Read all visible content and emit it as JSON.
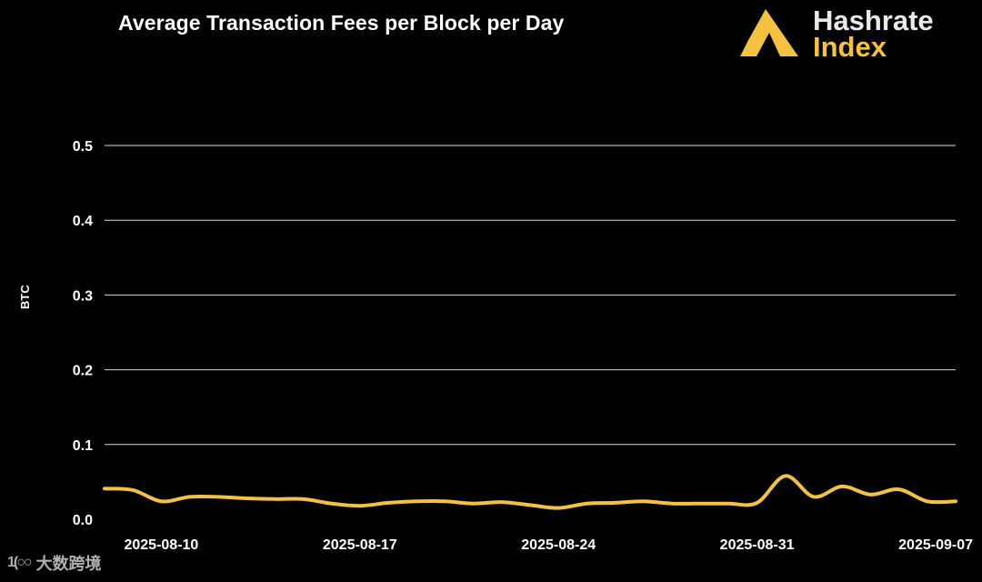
{
  "chart_data": {
    "type": "line",
    "title": "Average Transaction Fees per Block per Day",
    "ylabel": "BTC",
    "ylim": [
      0,
      0.5
    ],
    "yticks": [
      "0.0",
      "0.1",
      "0.2",
      "0.3",
      "0.4",
      "0.5"
    ],
    "xlim": [
      "2025-08-08",
      "2025-09-07"
    ],
    "xticks": [
      "2025-08-10",
      "2025-08-17",
      "2025-08-24",
      "2025-08-31",
      "2025-09-07"
    ],
    "grid": true,
    "series": [
      {
        "color": "#f4c242",
        "x": [
          "2025-08-08",
          "2025-08-09",
          "2025-08-10",
          "2025-08-11",
          "2025-08-12",
          "2025-08-13",
          "2025-08-14",
          "2025-08-15",
          "2025-08-16",
          "2025-08-17",
          "2025-08-18",
          "2025-08-19",
          "2025-08-20",
          "2025-08-21",
          "2025-08-22",
          "2025-08-23",
          "2025-08-24",
          "2025-08-25",
          "2025-08-26",
          "2025-08-27",
          "2025-08-28",
          "2025-08-29",
          "2025-08-30",
          "2025-08-31",
          "2025-09-01",
          "2025-09-02",
          "2025-09-03",
          "2025-09-04",
          "2025-09-05",
          "2025-09-06",
          "2025-09-07"
        ],
        "values": [
          0.041,
          0.039,
          0.024,
          0.03,
          0.03,
          0.028,
          0.027,
          0.027,
          0.021,
          0.018,
          0.022,
          0.024,
          0.024,
          0.021,
          0.023,
          0.019,
          0.015,
          0.021,
          0.022,
          0.024,
          0.021,
          0.021,
          0.021,
          0.022,
          0.058,
          0.03,
          0.044,
          0.033,
          0.04,
          0.024,
          0.024
        ]
      }
    ]
  },
  "logo": {
    "line1": "Hashrate",
    "line2": "Index",
    "color": "#f4c242"
  },
  "watermark": {
    "icon": "tdo-logo-icon",
    "text": "大数跨境"
  }
}
